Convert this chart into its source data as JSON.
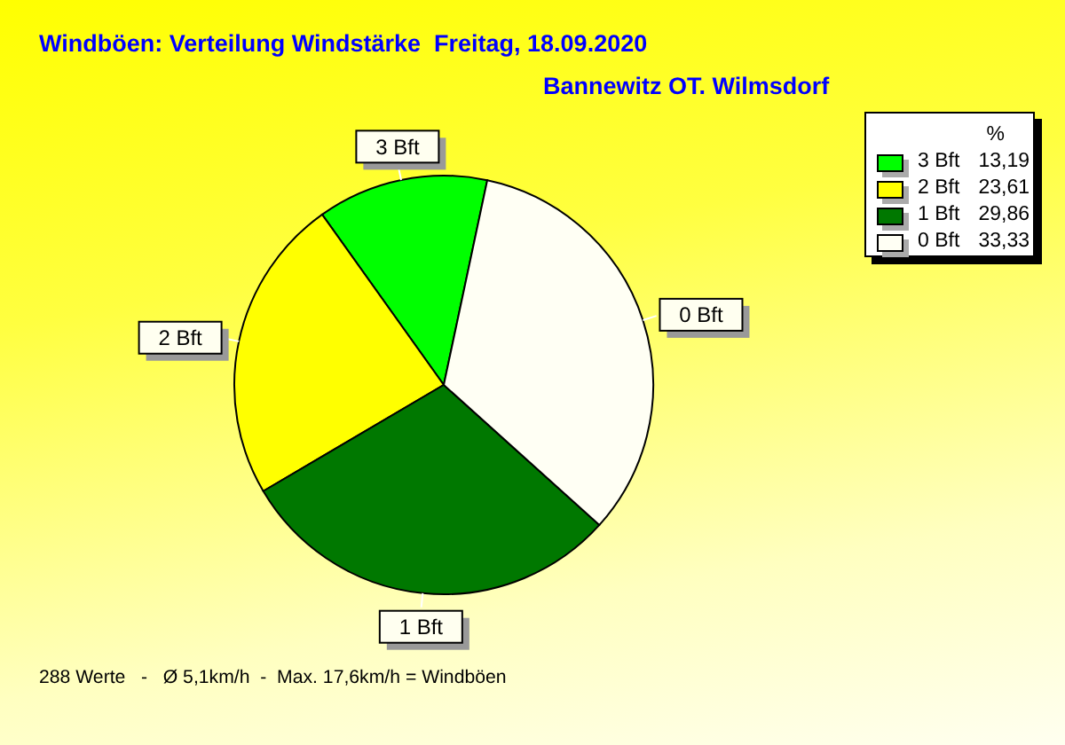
{
  "chart_data": {
    "type": "pie",
    "title": "Windböen: Verteilung Windstärke  Freitag, 18.09.2020",
    "subtitle": "Bannewitz OT. Wilmsdorf",
    "legend_title": "%",
    "categories": [
      "3 Bft",
      "2 Bft",
      "1 Bft",
      "0 Bft"
    ],
    "values": [
      13.19,
      23.61,
      29.86,
      33.33
    ],
    "colors": [
      "#00ff00",
      "#ffff00",
      "#007800",
      "#fffff4"
    ],
    "value_labels": [
      "13,19",
      "23,61",
      "29,86",
      "33,33"
    ],
    "legend": "top right",
    "annotations": [
      "288 Werte   -   Ø 5,1km/h  -  Max. 17,6km/h = Windböen"
    ]
  }
}
